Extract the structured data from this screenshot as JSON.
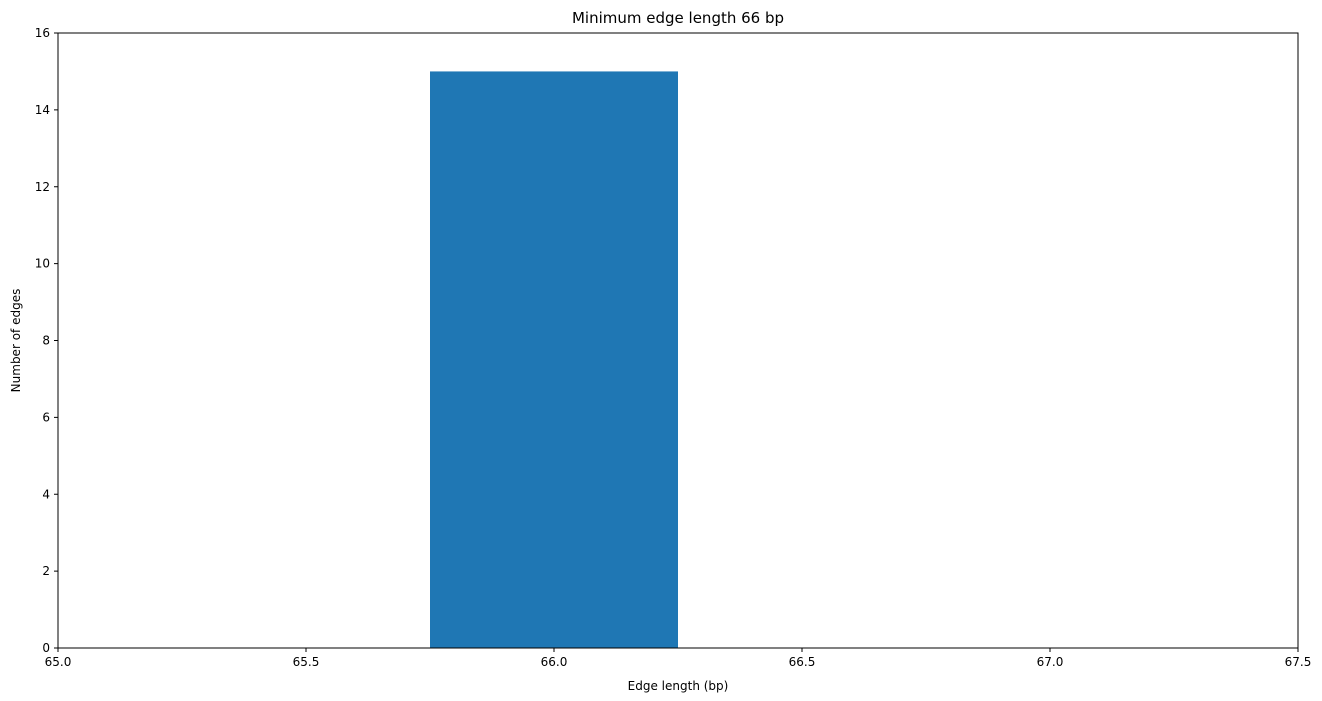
{
  "chart_data": {
    "type": "bar",
    "title": "Minimum edge length 66 bp",
    "xlabel": "Edge length (bp)",
    "ylabel": "Number of edges",
    "xlim": [
      65.0,
      67.5
    ],
    "ylim": [
      0,
      16
    ],
    "x_ticks": [
      "65.0",
      "65.5",
      "66.0",
      "66.5",
      "67.0",
      "67.5"
    ],
    "y_ticks": [
      "0",
      "2",
      "4",
      "6",
      "8",
      "10",
      "12",
      "14",
      "16"
    ],
    "bars": [
      {
        "x_start": 65.75,
        "x_end": 66.25,
        "value": 15
      }
    ],
    "bar_color": "#1f77b4",
    "grid": false,
    "legend": "none"
  }
}
